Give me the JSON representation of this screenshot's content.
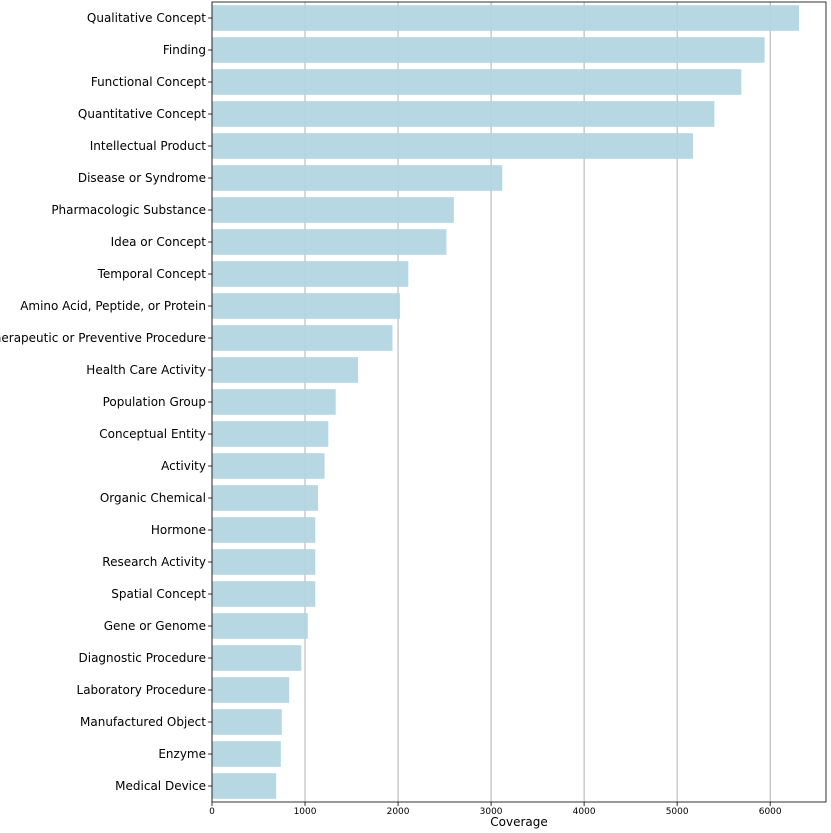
{
  "chart_data": {
    "type": "bar",
    "orientation": "horizontal",
    "categories": [
      "Qualitative Concept",
      "Finding",
      "Functional Concept",
      "Quantitative Concept",
      "Intellectual Product",
      "Disease or Syndrome",
      "Pharmacologic Substance",
      "Idea or Concept",
      "Temporal Concept",
      "Amino Acid, Peptide, or Protein",
      "Therapeutic or Preventive Procedure",
      "Health Care Activity",
      "Population Group",
      "Conceptual Entity",
      "Activity",
      "Organic Chemical",
      "Hormone",
      "Research Activity",
      "Spatial Concept",
      "Gene or Genome",
      "Diagnostic Procedure",
      "Laboratory Procedure",
      "Manufactured Object",
      "Enzyme",
      "Medical Device"
    ],
    "values": [
      6310,
      5940,
      5690,
      5400,
      5170,
      3120,
      2600,
      2520,
      2110,
      2020,
      1940,
      1570,
      1330,
      1250,
      1210,
      1140,
      1110,
      1110,
      1110,
      1030,
      960,
      830,
      750,
      740,
      690
    ],
    "xlabel": "Coverage",
    "ylabel": "",
    "title": "",
    "xlim": [
      0,
      6600
    ],
    "xticks": [
      0,
      1000,
      2000,
      3000,
      4000,
      5000,
      6000
    ],
    "xtick_labels": [
      "0",
      "1000",
      "2000",
      "3000",
      "4000",
      "5000",
      "6000"
    ],
    "grid": "vertical",
    "bar_color": "#b3d5e0",
    "grid_color": "#b0b0b0",
    "legend": "none"
  }
}
